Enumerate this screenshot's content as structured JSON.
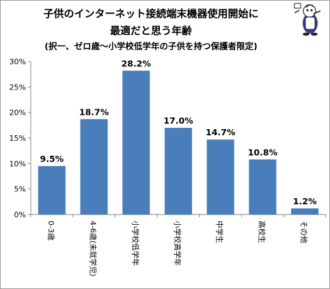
{
  "title_line1": "子供のインターネット接続端末機器使用開始に",
  "title_line2": "最適だと思う年齢",
  "subtitle": "(択一、ゼロ歳～小学校低学年の子供を持つ保護者限定)",
  "colors": {
    "bar": "#4a7ebb",
    "axis": "#868686",
    "text": "#000000"
  },
  "chart_data": {
    "type": "bar",
    "title": "子供のインターネット接続端末機器使用開始に最適だと思う年齢",
    "subtitle": "(択一、ゼロ歳～小学校低学年の子供を持つ保護者限定)",
    "categories": [
      "0-3歳",
      "4-6歳(未就学児)",
      "小学校低学年",
      "小学校高学年",
      "中学生",
      "高校生",
      "その他"
    ],
    "values": [
      9.5,
      18.7,
      28.2,
      17.0,
      14.7,
      10.8,
      1.2
    ],
    "data_labels": [
      "9.5%",
      "18.7%",
      "28.2%",
      "17.0%",
      "14.7%",
      "10.8%",
      "1.2%"
    ],
    "y_ticks": [
      "0%",
      "5%",
      "10%",
      "15%",
      "20%",
      "25%",
      "30%"
    ],
    "ylim": [
      0,
      30
    ],
    "xlabel": "",
    "ylabel": "",
    "grid": false,
    "legend": "none"
  }
}
